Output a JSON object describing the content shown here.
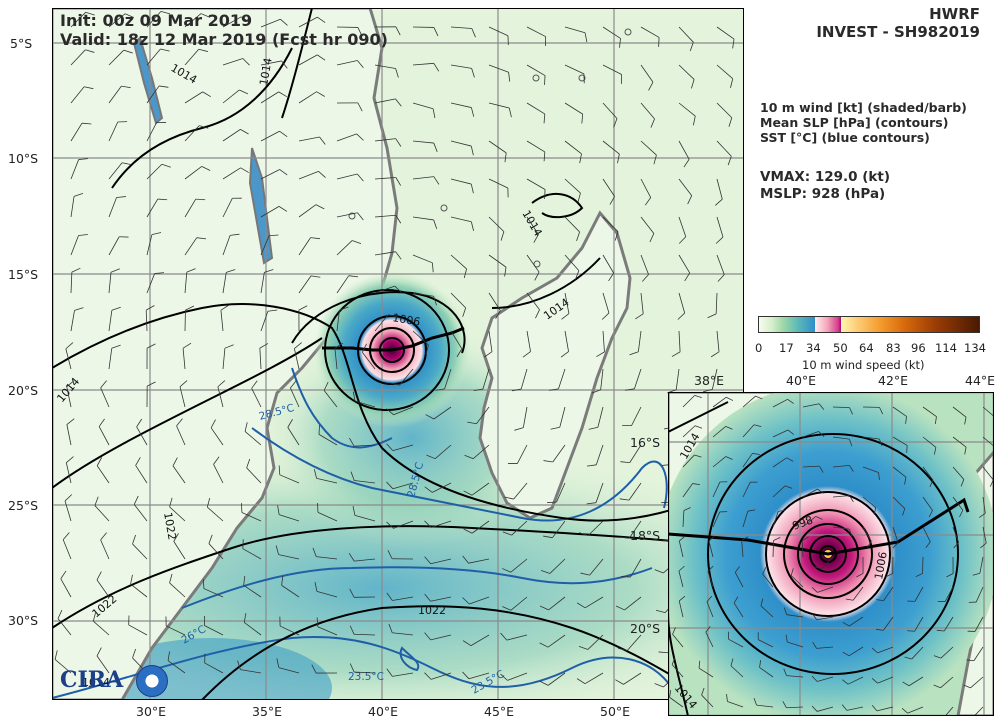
{
  "header": {
    "init": "Init:  00z 09 Mar 2019",
    "valid": "Valid: 18z 12 Mar 2019 (Fcst hr 090)",
    "model": "HWRF",
    "storm": "INVEST - SH982019"
  },
  "legend": {
    "line1": "10 m wind [kt] (shaded/barb)",
    "line2": "Mean SLP [hPa] (contours)",
    "line3": "SST [°C] (blue contours)",
    "vmax": "VMAX: 129.0 (kt)",
    "mslp": "MSLP:  928 (hPa)"
  },
  "colorbar": {
    "ticks": [
      "0",
      "17",
      "34",
      "50",
      "64",
      "83",
      "96",
      "114",
      "134"
    ],
    "label": "10 m wind speed (kt)",
    "colors": [
      "#f7fcf0",
      "#9fd7a8",
      "#2f8fc9",
      "#f4a7b9",
      "#b0006e",
      "#fff7b0",
      "#f59c2e",
      "#d86a0c",
      "#4a1a02"
    ]
  },
  "main_map": {
    "lon_labels": [
      "30°E",
      "35°E",
      "40°E",
      "45°E",
      "50°E"
    ],
    "lat_labels": [
      "5°S",
      "10°S",
      "15°S",
      "20°S",
      "25°S",
      "30°S"
    ],
    "contour_labels": [
      "1014",
      "1014",
      "1014",
      "1014",
      "1006",
      "1014",
      "1022",
      "1022",
      "1022",
      "1014"
    ],
    "sst_labels": [
      "28.5°C",
      "28.5°C",
      "26°C",
      "23.5°C",
      "23.5°C"
    ],
    "logo": "CIRA"
  },
  "inset_map": {
    "lon_labels": [
      "38°E",
      "40°E",
      "42°E",
      "44°E"
    ],
    "lat_labels": [
      "16°S",
      "18°S",
      "20°S"
    ],
    "contour_labels": [
      "1014",
      "998",
      "1006",
      "1014"
    ]
  }
}
